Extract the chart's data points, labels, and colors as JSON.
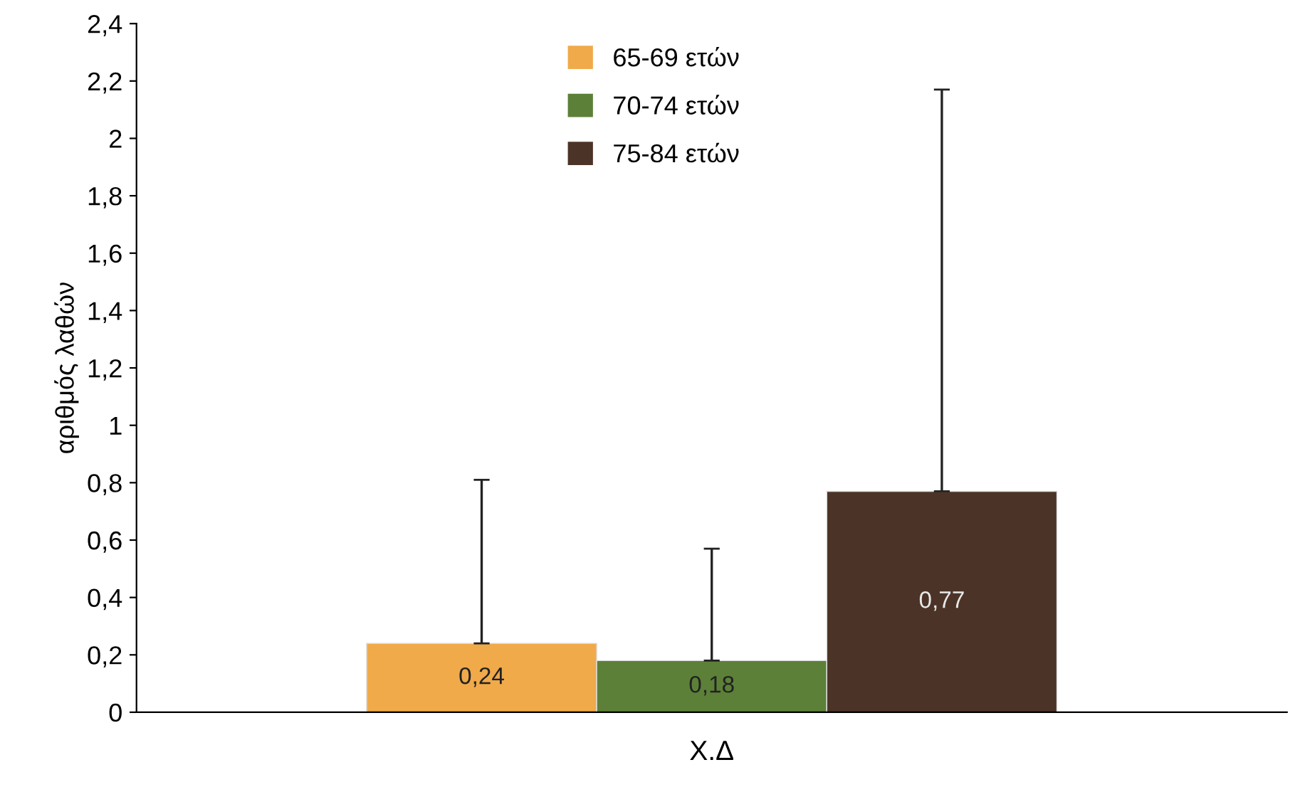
{
  "chart_data": {
    "type": "bar",
    "ylabel": "αριθμός λαθών",
    "categories": [
      "Χ.Δ"
    ],
    "series": [
      {
        "name": "65-69 ετών",
        "color": "#f0aa4a",
        "values": [
          0.24
        ],
        "errors": [
          [
            0.24,
            0.81
          ]
        ],
        "value_labels": [
          "0,24"
        ]
      },
      {
        "name": "70-74 ετών",
        "color": "#5c8038",
        "values": [
          0.18
        ],
        "errors": [
          [
            0.18,
            0.57
          ]
        ],
        "value_labels": [
          "0,18"
        ]
      },
      {
        "name": "75-84 ετών",
        "color": "#4b3427",
        "values": [
          0.77
        ],
        "errors": [
          [
            0.77,
            2.17
          ]
        ],
        "value_labels": [
          "0,77"
        ]
      }
    ],
    "ylim": [
      0,
      2.4
    ],
    "yticks": [
      0,
      {
        "value": 0.2,
        "label": "0,2"
      },
      {
        "value": 0.4,
        "label": "0,4"
      },
      {
        "value": 0.6,
        "label": "0,6"
      },
      {
        "value": 0.8,
        "label": "0,8"
      },
      1,
      {
        "value": 1.2,
        "label": "1,2"
      },
      {
        "value": 1.4,
        "label": "1,4"
      },
      {
        "value": 1.6,
        "label": "1,6"
      },
      {
        "value": 1.8,
        "label": "1,8"
      },
      2,
      {
        "value": 2.2,
        "label": "2,2"
      },
      {
        "value": 2.4,
        "label": "2,4"
      }
    ],
    "grid": false,
    "legend": "top"
  }
}
